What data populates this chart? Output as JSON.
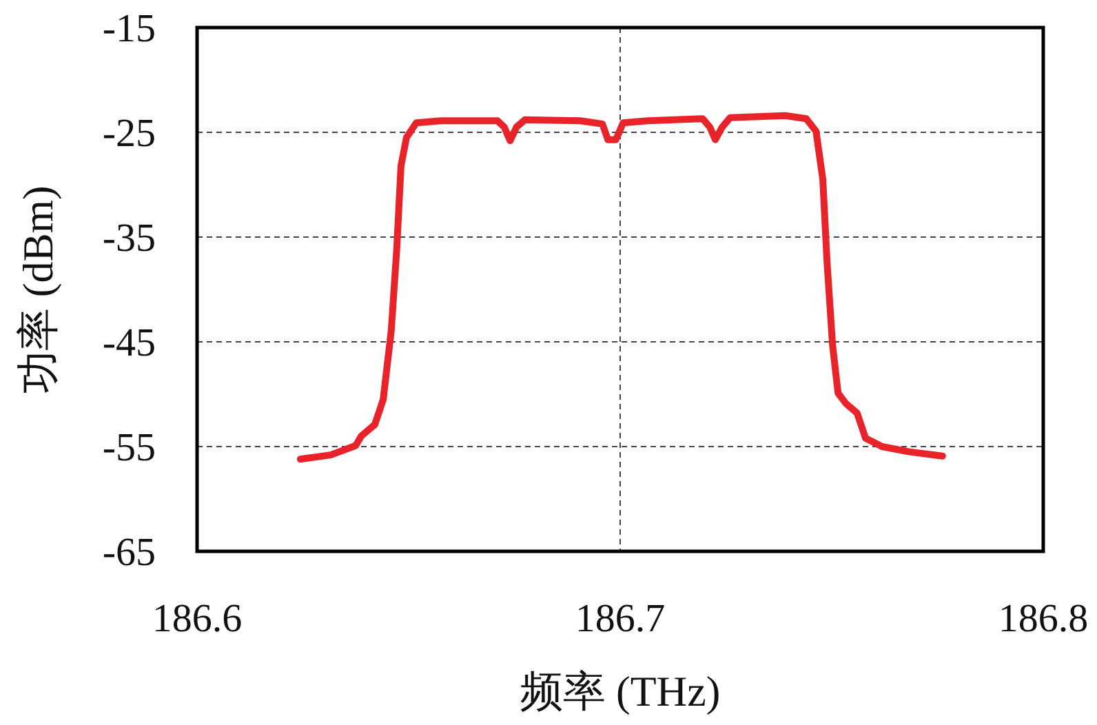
{
  "chart_data": {
    "type": "line",
    "xlabel": "频率 (THz)",
    "ylabel": "功率 (dBm)",
    "xlim": [
      186.6,
      186.8
    ],
    "ylim": [
      -65,
      -15
    ],
    "xticks": [
      186.6,
      186.7,
      186.8
    ],
    "yticks": [
      -65,
      -55,
      -45,
      -35,
      -25,
      -15
    ],
    "grid": true,
    "line_style": "solid",
    "series": [
      {
        "color": "#e8232a",
        "x": [
          186.6244,
          186.6316,
          186.6375,
          186.6388,
          186.642,
          186.644,
          186.6459,
          186.6472,
          186.6482,
          186.6495,
          186.6518,
          186.6577,
          186.671,
          186.6726,
          186.674,
          186.6755,
          186.6775,
          186.6906,
          186.6958,
          186.6971,
          186.699,
          186.7007,
          186.7065,
          186.7195,
          186.7212,
          186.7225,
          186.7241,
          186.726,
          186.739,
          186.744,
          186.7463,
          186.7479,
          186.7489,
          186.7502,
          186.7515,
          186.7534,
          186.756,
          186.758,
          186.7619,
          186.7684,
          186.7762
        ],
        "values": [
          -56.2,
          -55.8,
          -54.9,
          -54.0,
          -52.9,
          -50.5,
          -43.9,
          -36.1,
          -28.2,
          -25.5,
          -24.1,
          -23.9,
          -23.9,
          -24.5,
          -25.8,
          -24.5,
          -23.8,
          -23.9,
          -24.2,
          -25.7,
          -25.7,
          -24.1,
          -23.9,
          -23.7,
          -24.5,
          -25.7,
          -24.5,
          -23.6,
          -23.4,
          -23.7,
          -24.9,
          -29.5,
          -37.4,
          -45.3,
          -49.9,
          -50.9,
          -51.8,
          -54.2,
          -55.0,
          -55.5,
          -55.9
        ]
      }
    ]
  }
}
